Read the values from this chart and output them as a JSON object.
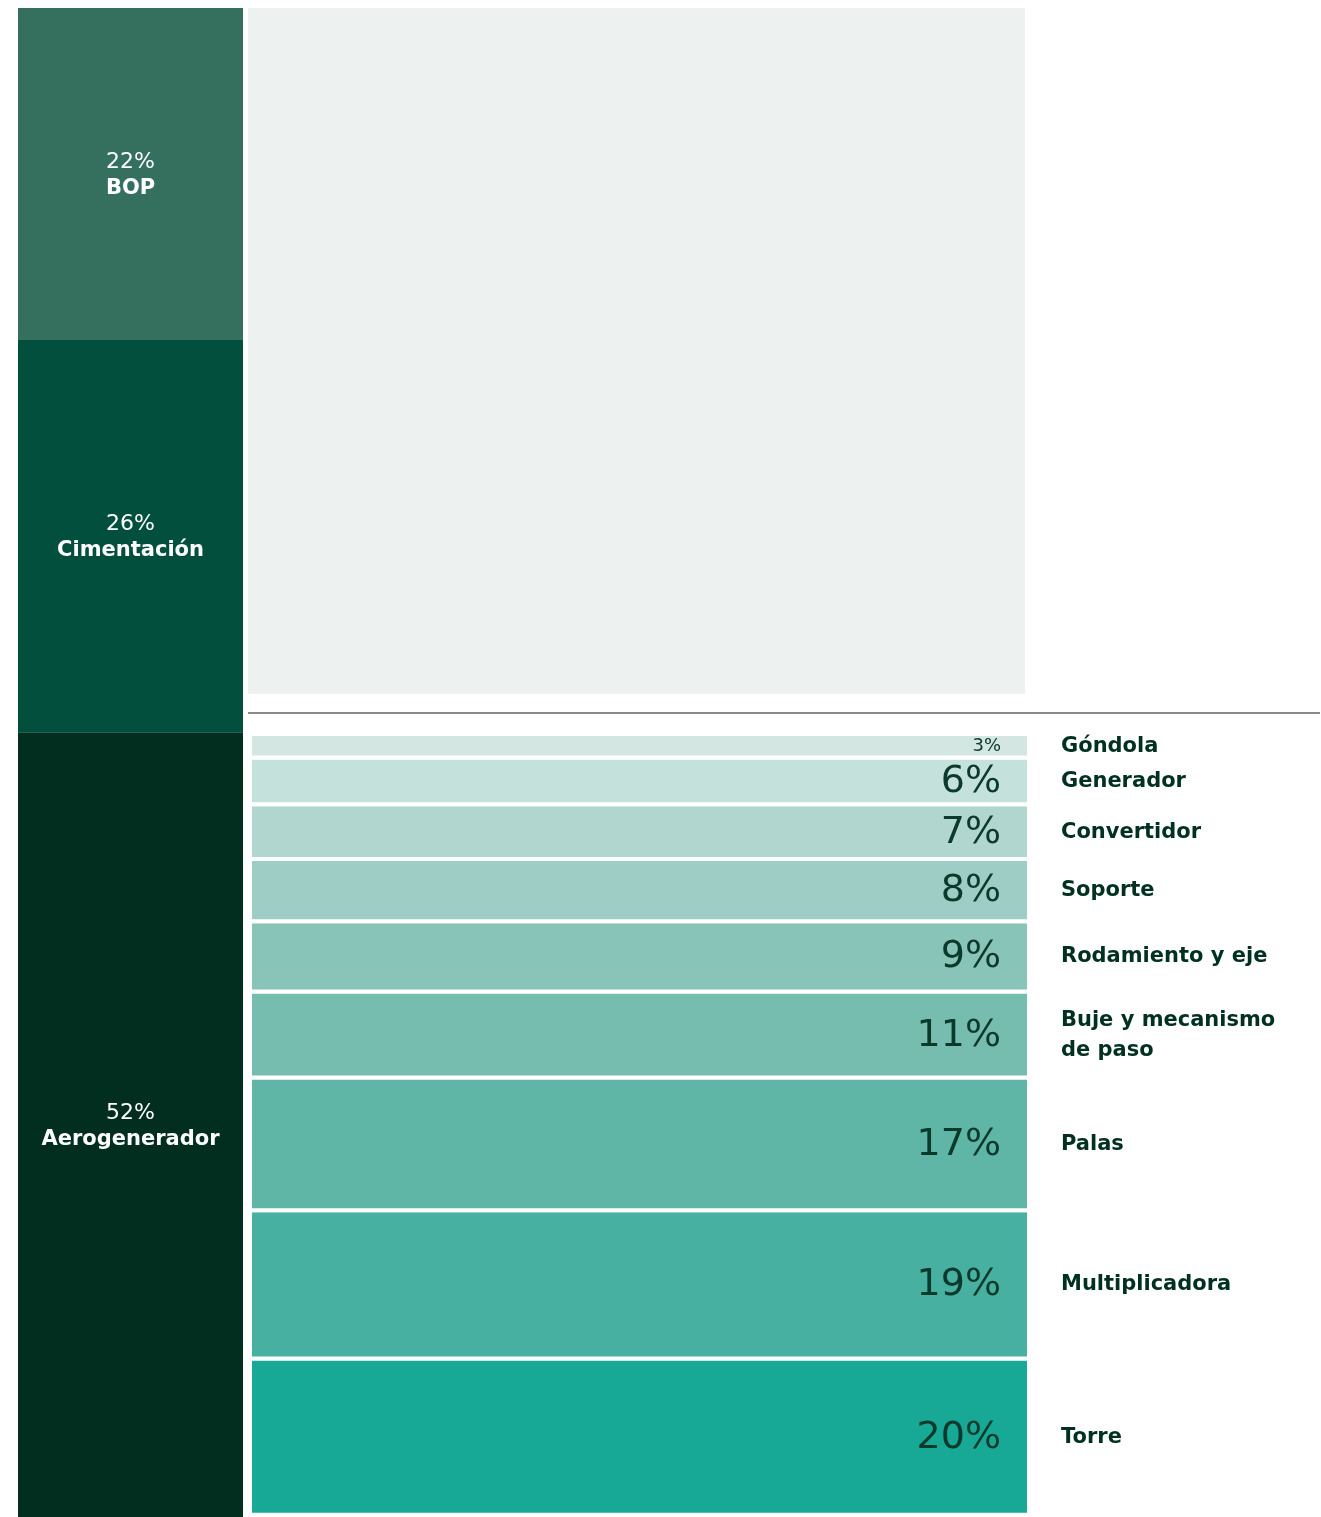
{
  "chart_data": [
    {
      "type": "bar",
      "stacked": true,
      "categories": [
        null
      ],
      "legend": false,
      "series": [
        {
          "name": "Aerogenerador",
          "color": "#022e20",
          "values": [
            52
          ],
          "value_labels": [
            "52%"
          ]
        },
        {
          "name": "Cimentación",
          "color": "#034f3e",
          "values": [
            26
          ],
          "value_labels": [
            "26%"
          ]
        },
        {
          "name": "BOP",
          "color": "#35705f",
          "values": [
            22
          ],
          "value_labels": [
            "22%"
          ]
        }
      ]
    },
    {
      "type": "bar",
      "stacked": true,
      "categories": [
        null
      ],
      "legend": false,
      "series": [
        {
          "name": "Torre",
          "color": "#18a996",
          "values": [
            20
          ],
          "value_labels": [
            "20%"
          ]
        },
        {
          "name": "Multiplicadora",
          "color": "#47b0a0",
          "values": [
            19
          ],
          "value_labels": [
            "19%"
          ]
        },
        {
          "name": "Palas",
          "color": "#5fb5a6",
          "values": [
            17
          ],
          "value_labels": [
            "17%"
          ]
        },
        {
          "name": "Buje y mecanismo de paso",
          "color": "#76bdb0",
          "values": [
            11
          ],
          "value_labels": [
            "11%"
          ]
        },
        {
          "name": "Rodamiento y eje",
          "color": "#89c4b9",
          "values": [
            9
          ],
          "value_labels": [
            "9%"
          ]
        },
        {
          "name": "Soporte",
          "color": "#9ecdc6",
          "values": [
            8
          ],
          "value_labels": [
            "8%"
          ]
        },
        {
          "name": "Convertidor",
          "color": "#b1d6cf",
          "values": [
            7
          ],
          "value_labels": [
            "7%"
          ]
        },
        {
          "name": "Generador",
          "color": "#c5e1db",
          "values": [
            6
          ],
          "value_labels": [
            "6%"
          ]
        },
        {
          "name": "Góndola",
          "color": "#d3e6e2",
          "values": [
            3
          ],
          "value_labels": [
            "3%"
          ]
        }
      ]
    }
  ]
}
